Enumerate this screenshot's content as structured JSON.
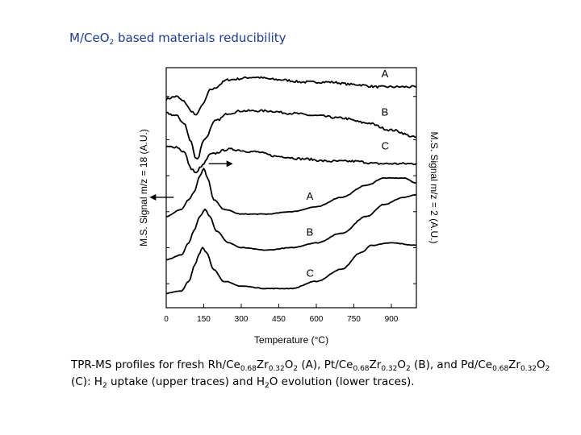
{
  "slide": {
    "title_main": "M/CeO",
    "title_sub": "2",
    "title_rest": "  based materials reducibility"
  },
  "caption_parts": [
    {
      "t": "TPR-MS profiles for fresh Rh/Ce"
    },
    {
      "s": "0.68"
    },
    {
      "t": "Zr"
    },
    {
      "s": "0.32"
    },
    {
      "t": "O"
    },
    {
      "s": "2"
    },
    {
      "t": " (A), Pt/Ce"
    },
    {
      "s": "0.68"
    },
    {
      "t": "Zr"
    },
    {
      "s": "0.32"
    },
    {
      "t": "O"
    },
    {
      "s": "2"
    },
    {
      "t": " (B), and Pd/Ce"
    },
    {
      "s": "0.68"
    },
    {
      "t": "Zr"
    },
    {
      "s": "0.32"
    },
    {
      "t": "O"
    },
    {
      "s": "2"
    },
    {
      "t": " (C):  H"
    },
    {
      "s": "2"
    },
    {
      "t": " uptake (upper traces) and H"
    },
    {
      "s": "2"
    },
    {
      "t": "O evolution (lower traces)."
    }
  ],
  "chart_data": {
    "type": "line",
    "xlabel": "Temperature (°C)",
    "ylabel_left": "M.S. Signal m/z = 18 (A.U.)",
    "ylabel_right": "M.S. Signal m/z = 2 (A.U.)",
    "xlim": [
      0,
      1000
    ],
    "xticks": [
      0,
      150,
      300,
      450,
      600,
      750,
      900
    ],
    "ylim": [
      0,
      100
    ],
    "color": "#000000",
    "series": [
      {
        "name": "A",
        "group": "upper",
        "label_x": 860,
        "label_y": 96,
        "points": [
          [
            0,
            87
          ],
          [
            40,
            88
          ],
          [
            70,
            86
          ],
          [
            100,
            82
          ],
          [
            120,
            80
          ],
          [
            140,
            84
          ],
          [
            180,
            91
          ],
          [
            250,
            95
          ],
          [
            350,
            96
          ],
          [
            450,
            95
          ],
          [
            550,
            94
          ],
          [
            650,
            94
          ],
          [
            750,
            93
          ],
          [
            850,
            92
          ],
          [
            1000,
            92
          ]
        ]
      },
      {
        "name": "B",
        "group": "upper",
        "label_x": 860,
        "label_y": 80,
        "points": [
          [
            0,
            81
          ],
          [
            40,
            80
          ],
          [
            70,
            77
          ],
          [
            100,
            69
          ],
          [
            115,
            63
          ],
          [
            125,
            62
          ],
          [
            150,
            70
          ],
          [
            200,
            78
          ],
          [
            250,
            81
          ],
          [
            300,
            82
          ],
          [
            400,
            82
          ],
          [
            500,
            81
          ],
          [
            600,
            80
          ],
          [
            700,
            79
          ],
          [
            800,
            77
          ],
          [
            900,
            74
          ],
          [
            1000,
            71
          ]
        ]
      },
      {
        "name": "C",
        "group": "upper",
        "label_x": 860,
        "label_y": 66,
        "points": [
          [
            0,
            67
          ],
          [
            40,
            67
          ],
          [
            70,
            65
          ],
          [
            100,
            58
          ],
          [
            120,
            56
          ],
          [
            140,
            59
          ],
          [
            180,
            64
          ],
          [
            250,
            66
          ],
          [
            350,
            65
          ],
          [
            450,
            63
          ],
          [
            550,
            62
          ],
          [
            650,
            61
          ],
          [
            750,
            61
          ],
          [
            850,
            60
          ],
          [
            1000,
            60
          ]
        ]
      },
      {
        "name": "A",
        "group": "lower",
        "label_x": 560,
        "label_y": 45,
        "points": [
          [
            0,
            38
          ],
          [
            60,
            41
          ],
          [
            90,
            45
          ],
          [
            110,
            48
          ],
          [
            135,
            55
          ],
          [
            150,
            58
          ],
          [
            165,
            54
          ],
          [
            190,
            45
          ],
          [
            230,
            41
          ],
          [
            300,
            39
          ],
          [
            400,
            39
          ],
          [
            500,
            40
          ],
          [
            600,
            42
          ],
          [
            700,
            46
          ],
          [
            800,
            51
          ],
          [
            870,
            54
          ],
          [
            950,
            54
          ],
          [
            1000,
            52
          ]
        ]
      },
      {
        "name": "B",
        "group": "lower",
        "label_x": 560,
        "label_y": 30,
        "points": [
          [
            0,
            20
          ],
          [
            60,
            22
          ],
          [
            90,
            27
          ],
          [
            110,
            32
          ],
          [
            135,
            38
          ],
          [
            155,
            41
          ],
          [
            175,
            38
          ],
          [
            200,
            32
          ],
          [
            250,
            27
          ],
          [
            300,
            25
          ],
          [
            400,
            24
          ],
          [
            500,
            25
          ],
          [
            600,
            27
          ],
          [
            700,
            31
          ],
          [
            800,
            38
          ],
          [
            870,
            43
          ],
          [
            950,
            46
          ],
          [
            1000,
            47
          ]
        ]
      },
      {
        "name": "C",
        "group": "lower",
        "label_x": 560,
        "label_y": 13,
        "points": [
          [
            0,
            6
          ],
          [
            60,
            7
          ],
          [
            90,
            11
          ],
          [
            115,
            18
          ],
          [
            130,
            22
          ],
          [
            145,
            25
          ],
          [
            160,
            23
          ],
          [
            190,
            16
          ],
          [
            230,
            11
          ],
          [
            300,
            9
          ],
          [
            400,
            8
          ],
          [
            500,
            8
          ],
          [
            600,
            11
          ],
          [
            700,
            16
          ],
          [
            780,
            23
          ],
          [
            820,
            26
          ],
          [
            900,
            27
          ],
          [
            1000,
            26
          ]
        ]
      }
    ],
    "arrows": [
      {
        "points_to": "right",
        "x": 170,
        "y": 60
      },
      {
        "points_to": "left",
        "x": 30,
        "y": 46
      }
    ]
  }
}
